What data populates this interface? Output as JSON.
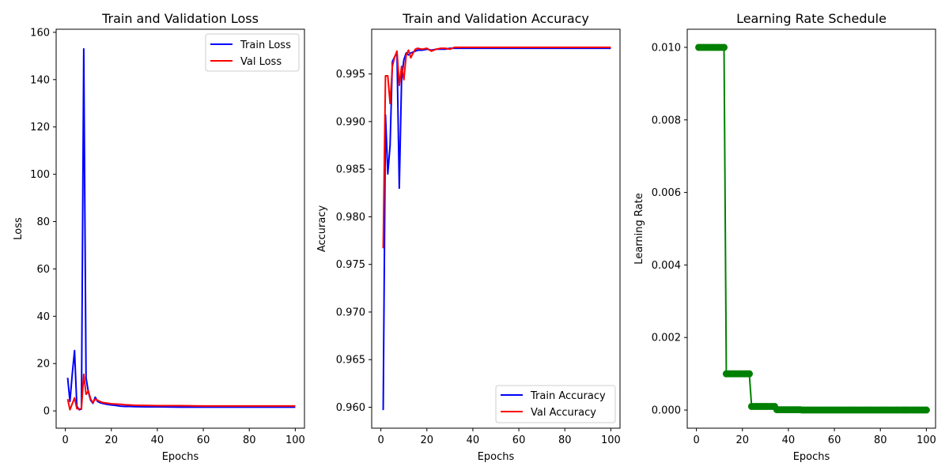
{
  "chart_data": [
    {
      "type": "line",
      "title": "Train and Validation Loss",
      "xlabel": "Epochs",
      "ylabel": "Loss",
      "xlim": [
        -4,
        104
      ],
      "ylim": [
        -7.3,
        161.3
      ],
      "xticks": [
        0,
        20,
        40,
        60,
        80,
        100
      ],
      "yticks": [
        0,
        20,
        40,
        60,
        80,
        100,
        120,
        140,
        160
      ],
      "legend": "top-right",
      "series": [
        {
          "name": "Train Loss",
          "color": "#0000ff",
          "x": [
            1,
            2,
            3,
            4,
            5,
            6,
            7,
            8,
            9,
            10,
            11,
            12,
            13,
            14,
            15,
            16,
            18,
            20,
            22,
            24,
            26,
            28,
            30,
            35,
            40,
            50,
            60,
            70,
            80,
            90,
            100
          ],
          "y": [
            14.0,
            4.0,
            15.5,
            25.5,
            2.0,
            0.5,
            0.8,
            153.0,
            14.0,
            8.0,
            4.5,
            3.2,
            5.8,
            4.0,
            3.5,
            3.2,
            2.8,
            2.5,
            2.3,
            2.0,
            1.9,
            1.9,
            1.8,
            1.7,
            1.7,
            1.6,
            1.6,
            1.6,
            1.6,
            1.6,
            1.6
          ]
        },
        {
          "name": "Val Loss",
          "color": "#ff0000",
          "x": [
            1,
            2,
            3,
            4,
            5,
            6,
            7,
            8,
            9,
            10,
            11,
            12,
            13,
            14,
            15,
            16,
            18,
            20,
            22,
            24,
            26,
            28,
            30,
            35,
            40,
            50,
            60,
            70,
            80,
            90,
            100
          ],
          "y": [
            5.0,
            0.5,
            3.0,
            5.5,
            1.0,
            0.8,
            1.0,
            15.5,
            7.0,
            8.5,
            5.0,
            3.5,
            5.0,
            4.5,
            4.0,
            3.6,
            3.3,
            3.0,
            2.9,
            2.8,
            2.6,
            2.5,
            2.4,
            2.3,
            2.2,
            2.2,
            2.1,
            2.1,
            2.1,
            2.1,
            2.1
          ]
        }
      ]
    },
    {
      "type": "line",
      "title": "Train and Validation Accuracy",
      "xlabel": "Epochs",
      "ylabel": "Accuracy",
      "xlim": [
        -4,
        104
      ],
      "ylim": [
        0.9578,
        0.9997
      ],
      "xticks": [
        0,
        20,
        40,
        60,
        80,
        100
      ],
      "yticks": [
        0.96,
        0.965,
        0.97,
        0.975,
        0.98,
        0.985,
        0.99,
        0.995
      ],
      "legend": "bottom-right",
      "series": [
        {
          "name": "Train Accuracy",
          "color": "#0000ff",
          "x": [
            1,
            2,
            3,
            4,
            5,
            6,
            7,
            8,
            9,
            10,
            11,
            12,
            13,
            14,
            15,
            16,
            18,
            20,
            22,
            24,
            26,
            28,
            30,
            35,
            40,
            50,
            60,
            70,
            80,
            90,
            100
          ],
          "y": [
            0.9597,
            0.9907,
            0.9845,
            0.9875,
            0.9963,
            0.9968,
            0.9972,
            0.983,
            0.9945,
            0.9965,
            0.9972,
            0.997,
            0.9972,
            0.9973,
            0.9974,
            0.9975,
            0.9975,
            0.9976,
            0.9975,
            0.9976,
            0.9976,
            0.9976,
            0.9977,
            0.9977,
            0.9977,
            0.9977,
            0.9977,
            0.9977,
            0.9977,
            0.9977,
            0.9977
          ]
        },
        {
          "name": "Val Accuracy",
          "color": "#ff0000",
          "x": [
            1,
            2,
            3,
            4,
            5,
            6,
            7,
            8,
            9,
            10,
            11,
            12,
            13,
            14,
            15,
            16,
            18,
            20,
            22,
            24,
            26,
            28,
            30,
            32,
            35,
            40,
            50,
            60,
            70,
            80,
            90,
            100
          ],
          "y": [
            0.9767,
            0.9948,
            0.9948,
            0.9919,
            0.9958,
            0.9968,
            0.9974,
            0.9938,
            0.9958,
            0.9944,
            0.997,
            0.9975,
            0.9967,
            0.9972,
            0.9976,
            0.9977,
            0.9976,
            0.9977,
            0.9974,
            0.9976,
            0.9977,
            0.9977,
            0.9976,
            0.9978,
            0.9978,
            0.9978,
            0.9978,
            0.9978,
            0.9978,
            0.9978,
            0.9978,
            0.9978
          ]
        }
      ]
    },
    {
      "type": "line",
      "title": "Learning Rate Schedule",
      "xlabel": "Epochs",
      "ylabel": "Learning Rate",
      "xlim": [
        -4,
        104
      ],
      "ylim": [
        -0.0005,
        0.0105
      ],
      "xticks": [
        0,
        20,
        40,
        60,
        80,
        100
      ],
      "yticks": [
        0.0,
        0.002,
        0.004,
        0.006,
        0.008,
        0.01
      ],
      "markers": true,
      "series": [
        {
          "color": "#008000",
          "x": [
            1,
            2,
            3,
            4,
            5,
            6,
            7,
            8,
            9,
            10,
            11,
            12,
            13,
            14,
            15,
            16,
            17,
            18,
            19,
            20,
            21,
            22,
            23,
            24,
            25,
            26,
            27,
            28,
            29,
            30,
            31,
            32,
            33,
            34,
            35,
            36,
            37,
            38,
            39,
            40,
            41,
            42,
            43,
            44,
            45,
            46,
            47,
            48,
            49,
            50,
            51,
            52,
            53,
            54,
            55,
            56,
            57,
            58,
            59,
            60,
            61,
            62,
            63,
            64,
            65,
            66,
            67,
            68,
            69,
            70,
            71,
            72,
            73,
            74,
            75,
            76,
            77,
            78,
            79,
            80,
            81,
            82,
            83,
            84,
            85,
            86,
            87,
            88,
            89,
            90,
            91,
            92,
            93,
            94,
            95,
            96,
            97,
            98,
            99,
            100
          ],
          "y": [
            0.01,
            0.01,
            0.01,
            0.01,
            0.01,
            0.01,
            0.01,
            0.01,
            0.01,
            0.01,
            0.01,
            0.01,
            0.001,
            0.001,
            0.001,
            0.001,
            0.001,
            0.001,
            0.001,
            0.001,
            0.001,
            0.001,
            0.001,
            0.0001,
            0.0001,
            0.0001,
            0.0001,
            0.0001,
            0.0001,
            0.0001,
            0.0001,
            0.0001,
            0.0001,
            0.0001,
            1e-05,
            1e-05,
            1e-05,
            1e-05,
            1e-05,
            1e-05,
            1e-05,
            1e-05,
            1e-05,
            1e-05,
            1e-05,
            1e-06,
            1e-06,
            1e-06,
            1e-06,
            1e-06,
            1e-06,
            1e-06,
            1e-06,
            1e-06,
            1e-06,
            1e-06,
            1e-06,
            1e-06,
            1e-06,
            1e-06,
            1e-06,
            1e-06,
            1e-06,
            1e-06,
            1e-06,
            1e-06,
            1e-06,
            1e-06,
            1e-06,
            1e-06,
            1e-06,
            1e-06,
            1e-06,
            1e-06,
            1e-06,
            1e-06,
            1e-06,
            1e-06,
            1e-06,
            1e-06,
            1e-06,
            1e-06,
            1e-06,
            1e-06,
            1e-06,
            1e-06,
            1e-06,
            1e-06,
            1e-06,
            1e-06,
            1e-06,
            1e-06,
            1e-06,
            1e-06,
            1e-06,
            1e-06,
            1e-06,
            1e-06,
            1e-06,
            1e-06
          ]
        }
      ]
    }
  ]
}
